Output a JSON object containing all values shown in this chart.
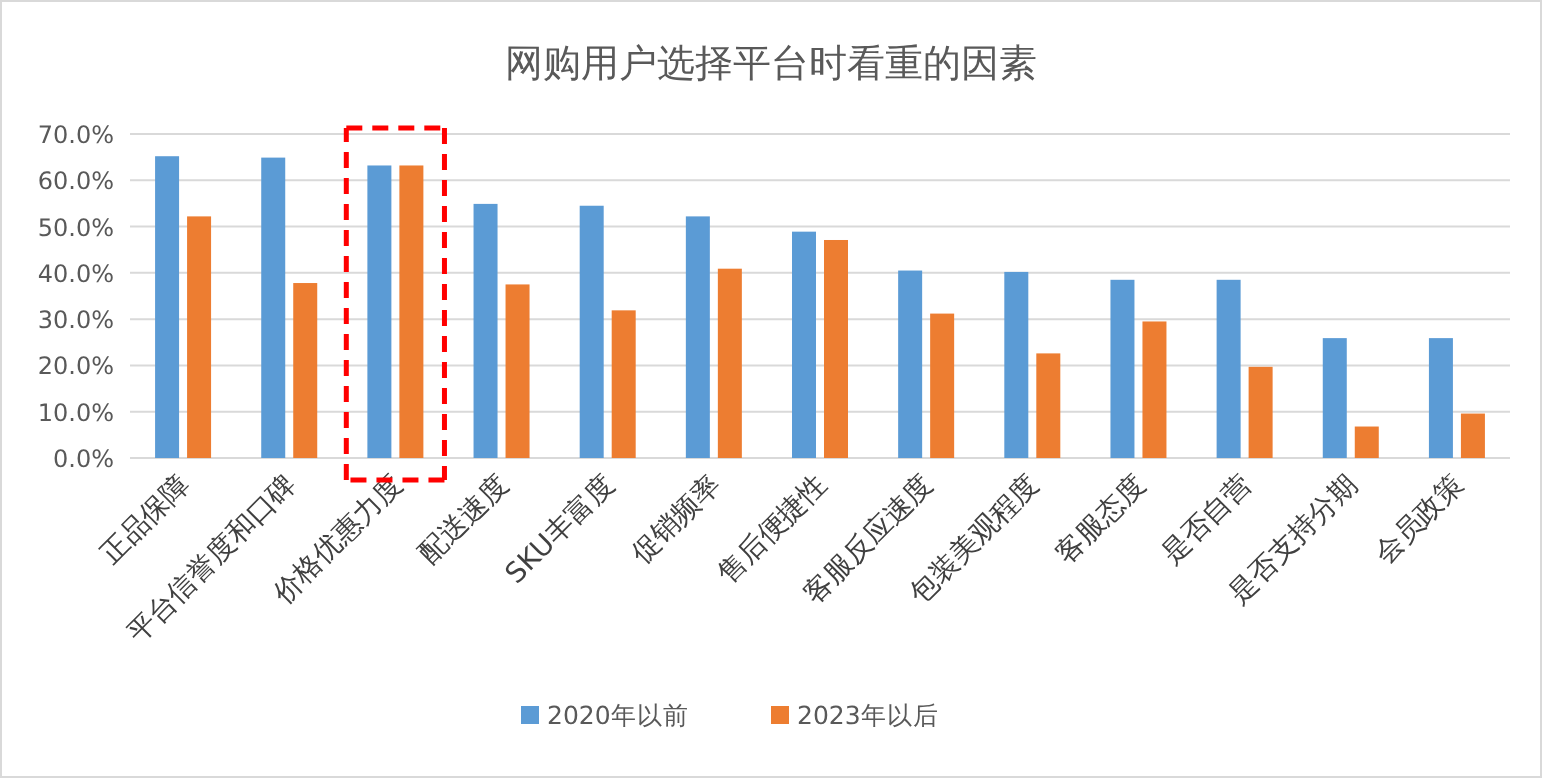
{
  "chart_data": {
    "type": "bar",
    "title": "网购用户选择平台时看重的因素",
    "categories": [
      "正品保障",
      "平台信誉度和口碑",
      "价格优惠力度",
      "配送速度",
      "SKU丰富度",
      "促销频率",
      "售后便捷性",
      "客服反应速度",
      "包装美观程度",
      "客服态度",
      "是否自营",
      "是否支持分期",
      "会员政策"
    ],
    "series": [
      {
        "name": "2020年以前",
        "color": "#5b9bd5",
        "values": [
          65.2,
          64.9,
          63.2,
          54.9,
          54.5,
          52.2,
          48.9,
          40.5,
          40.2,
          38.5,
          38.5,
          25.9,
          25.9
        ]
      },
      {
        "name": "2023年以后",
        "color": "#ed7d31",
        "values": [
          52.2,
          37.8,
          63.2,
          37.5,
          31.9,
          40.9,
          47.1,
          31.2,
          22.6,
          29.5,
          19.7,
          6.8,
          9.6
        ]
      }
    ],
    "ylim": [
      0,
      70
    ],
    "yticks": [
      {
        "value": 0,
        "label": "0.0%"
      },
      {
        "value": 10,
        "label": "10.0%"
      },
      {
        "value": 20,
        "label": "20.0%"
      },
      {
        "value": 30,
        "label": "30.0%"
      },
      {
        "value": 40,
        "label": "40.0%"
      },
      {
        "value": 50,
        "label": "50.0%"
      },
      {
        "value": 60,
        "label": "60.0%"
      },
      {
        "value": 70,
        "label": "70.0%"
      }
    ],
    "grid": "y",
    "legend": "bottom"
  }
}
